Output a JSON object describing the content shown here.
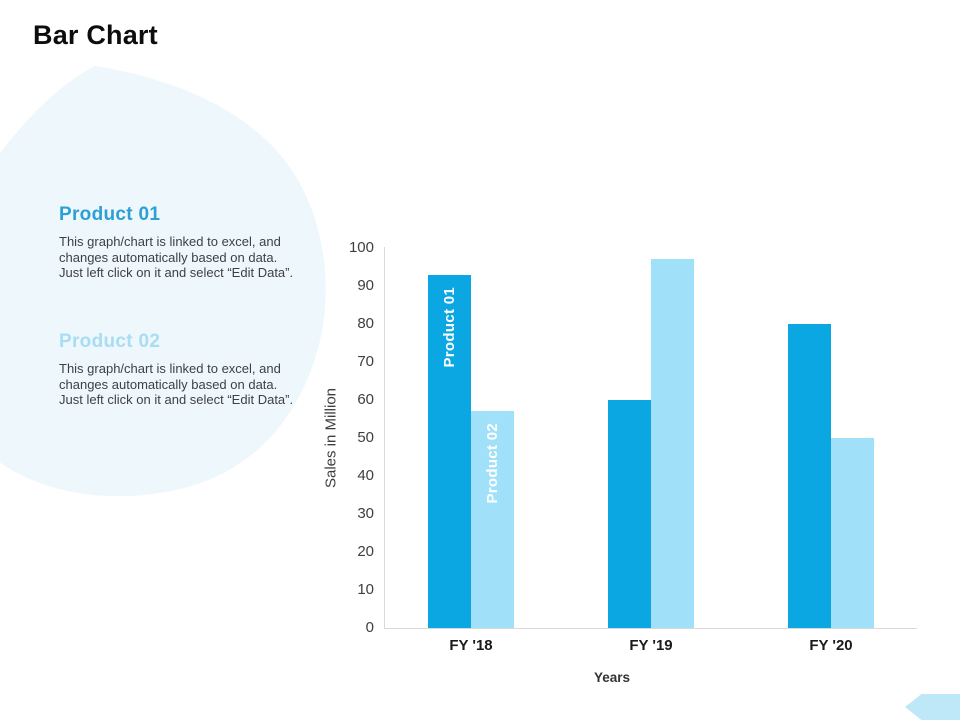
{
  "slide": {
    "title": "Bar Chart"
  },
  "info_blocks": [
    {
      "heading": "Product  01",
      "heading_color": "#2d9fd4",
      "body": "This graph/chart is linked to excel, and changes automatically based on data. Just left click on it and select “Edit Data”."
    },
    {
      "heading": "Product  02",
      "heading_color": "#a8ddf3",
      "body": "This graph/chart is linked to excel, and changes automatically based on data. Just left click on it and select “Edit Data”."
    }
  ],
  "chart_data": {
    "type": "bar",
    "categories": [
      "FY '18",
      "FY '19",
      "FY '20"
    ],
    "series": [
      {
        "name": "Product 01",
        "color": "#0ba7e2",
        "values": [
          93,
          60,
          80
        ]
      },
      {
        "name": "Product 02",
        "color": "#a0e0f8",
        "values": [
          57,
          97,
          50
        ]
      }
    ],
    "xlabel": "Years",
    "ylabel": "Sales in Million",
    "ylim": [
      0,
      100
    ],
    "ytick_step": 10,
    "grid": false,
    "legend_position": "series names as rotated white labels inside first bars",
    "bar_label_color": "#ffffff",
    "spine_color": "#d9d9d9",
    "tick_text_color": "#3e3e3e",
    "category_text_color": "#1a1a1a"
  },
  "decor": {
    "blob_color": "#edf7fc",
    "corner_arrow_color": "#bee8f8"
  }
}
